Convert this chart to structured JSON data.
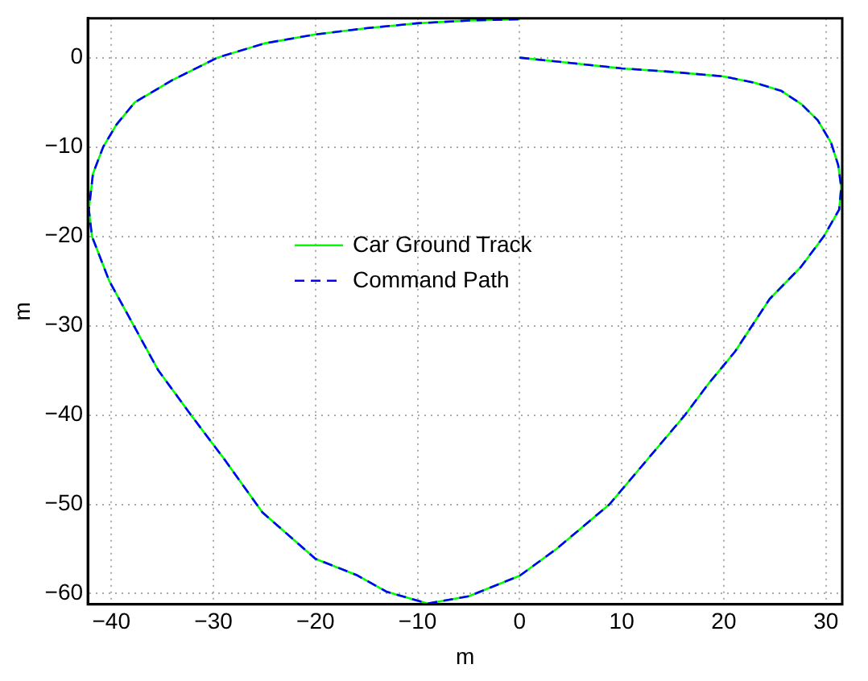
{
  "chart_data": {
    "type": "line",
    "xlabel": "m",
    "ylabel": "m",
    "xlim": [
      -42.3,
      31.6
    ],
    "ylim": [
      -61.2,
      4.4
    ],
    "xticks": [
      -40,
      -30,
      -20,
      -10,
      0,
      10,
      20,
      30
    ],
    "yticks": [
      -60,
      -50,
      -40,
      -30,
      -20,
      -10,
      0
    ],
    "grid": true,
    "legend": "center",
    "marker": "none",
    "series": [
      {
        "name": "Car Ground Track",
        "color": "#00ff00",
        "line_style": "solid",
        "x": [
          0,
          5,
          10,
          15,
          20,
          23,
          25.6,
          27.6,
          29.2,
          30.5,
          31.2,
          31.5,
          31.3,
          29.8,
          27.5,
          24.5,
          21.1,
          18.5,
          16.2,
          12.5,
          8.8,
          3.6,
          0,
          -5,
          -9,
          -13,
          -16,
          -20,
          -25.2,
          -28.9,
          -32.2,
          -35.4,
          -37.8,
          -40.2,
          -41.9,
          -42.2,
          -41.8,
          -40.8,
          -39.5,
          -37.7,
          -34,
          -29.6,
          -25,
          -20,
          -15,
          -10,
          -5,
          0
        ],
        "values": [
          0,
          -0.6,
          -1.2,
          -1.6,
          -2.1,
          -2.8,
          -3.7,
          -5.2,
          -7,
          -9.5,
          -12,
          -14.5,
          -17,
          -20,
          -23.5,
          -27,
          -32.9,
          -36.5,
          -40,
          -45,
          -50,
          -55,
          -58,
          -60.3,
          -61.1,
          -59.8,
          -57.9,
          -56.1,
          -50.9,
          -45,
          -40,
          -35,
          -30,
          -25,
          -20,
          -17,
          -13,
          -10,
          -7.5,
          -5,
          -2.5,
          0,
          1.6,
          2.6,
          3.3,
          3.85,
          4.15,
          4.3
        ]
      },
      {
        "name": "Command Path",
        "color": "#0000ff",
        "line_style": "dashed",
        "x": [
          0,
          5,
          10,
          15,
          20,
          23,
          25.6,
          27.6,
          29.2,
          30.5,
          31.2,
          31.5,
          31.3,
          29.8,
          27.5,
          24.5,
          21.1,
          18.5,
          16.2,
          12.5,
          8.8,
          3.6,
          0,
          -5,
          -9,
          -13,
          -16,
          -20,
          -25.2,
          -28.9,
          -32.2,
          -35.4,
          -37.8,
          -40.2,
          -41.9,
          -42.2,
          -41.8,
          -40.8,
          -39.5,
          -37.7,
          -34,
          -29.6,
          -25,
          -20,
          -15,
          -10,
          -5,
          0
        ],
        "values": [
          0,
          -0.6,
          -1.2,
          -1.6,
          -2.1,
          -2.8,
          -3.7,
          -5.2,
          -7,
          -9.5,
          -12,
          -14.5,
          -17,
          -20,
          -23.5,
          -27,
          -32.9,
          -36.5,
          -40,
          -45,
          -50,
          -55,
          -58,
          -60.3,
          -61.1,
          -59.8,
          -57.9,
          -56.1,
          -50.9,
          -45,
          -40,
          -35,
          -30,
          -25,
          -20,
          -17,
          -13,
          -10,
          -7.5,
          -5,
          -2.5,
          0,
          1.6,
          2.6,
          3.3,
          3.85,
          4.15,
          4.3
        ]
      }
    ]
  }
}
